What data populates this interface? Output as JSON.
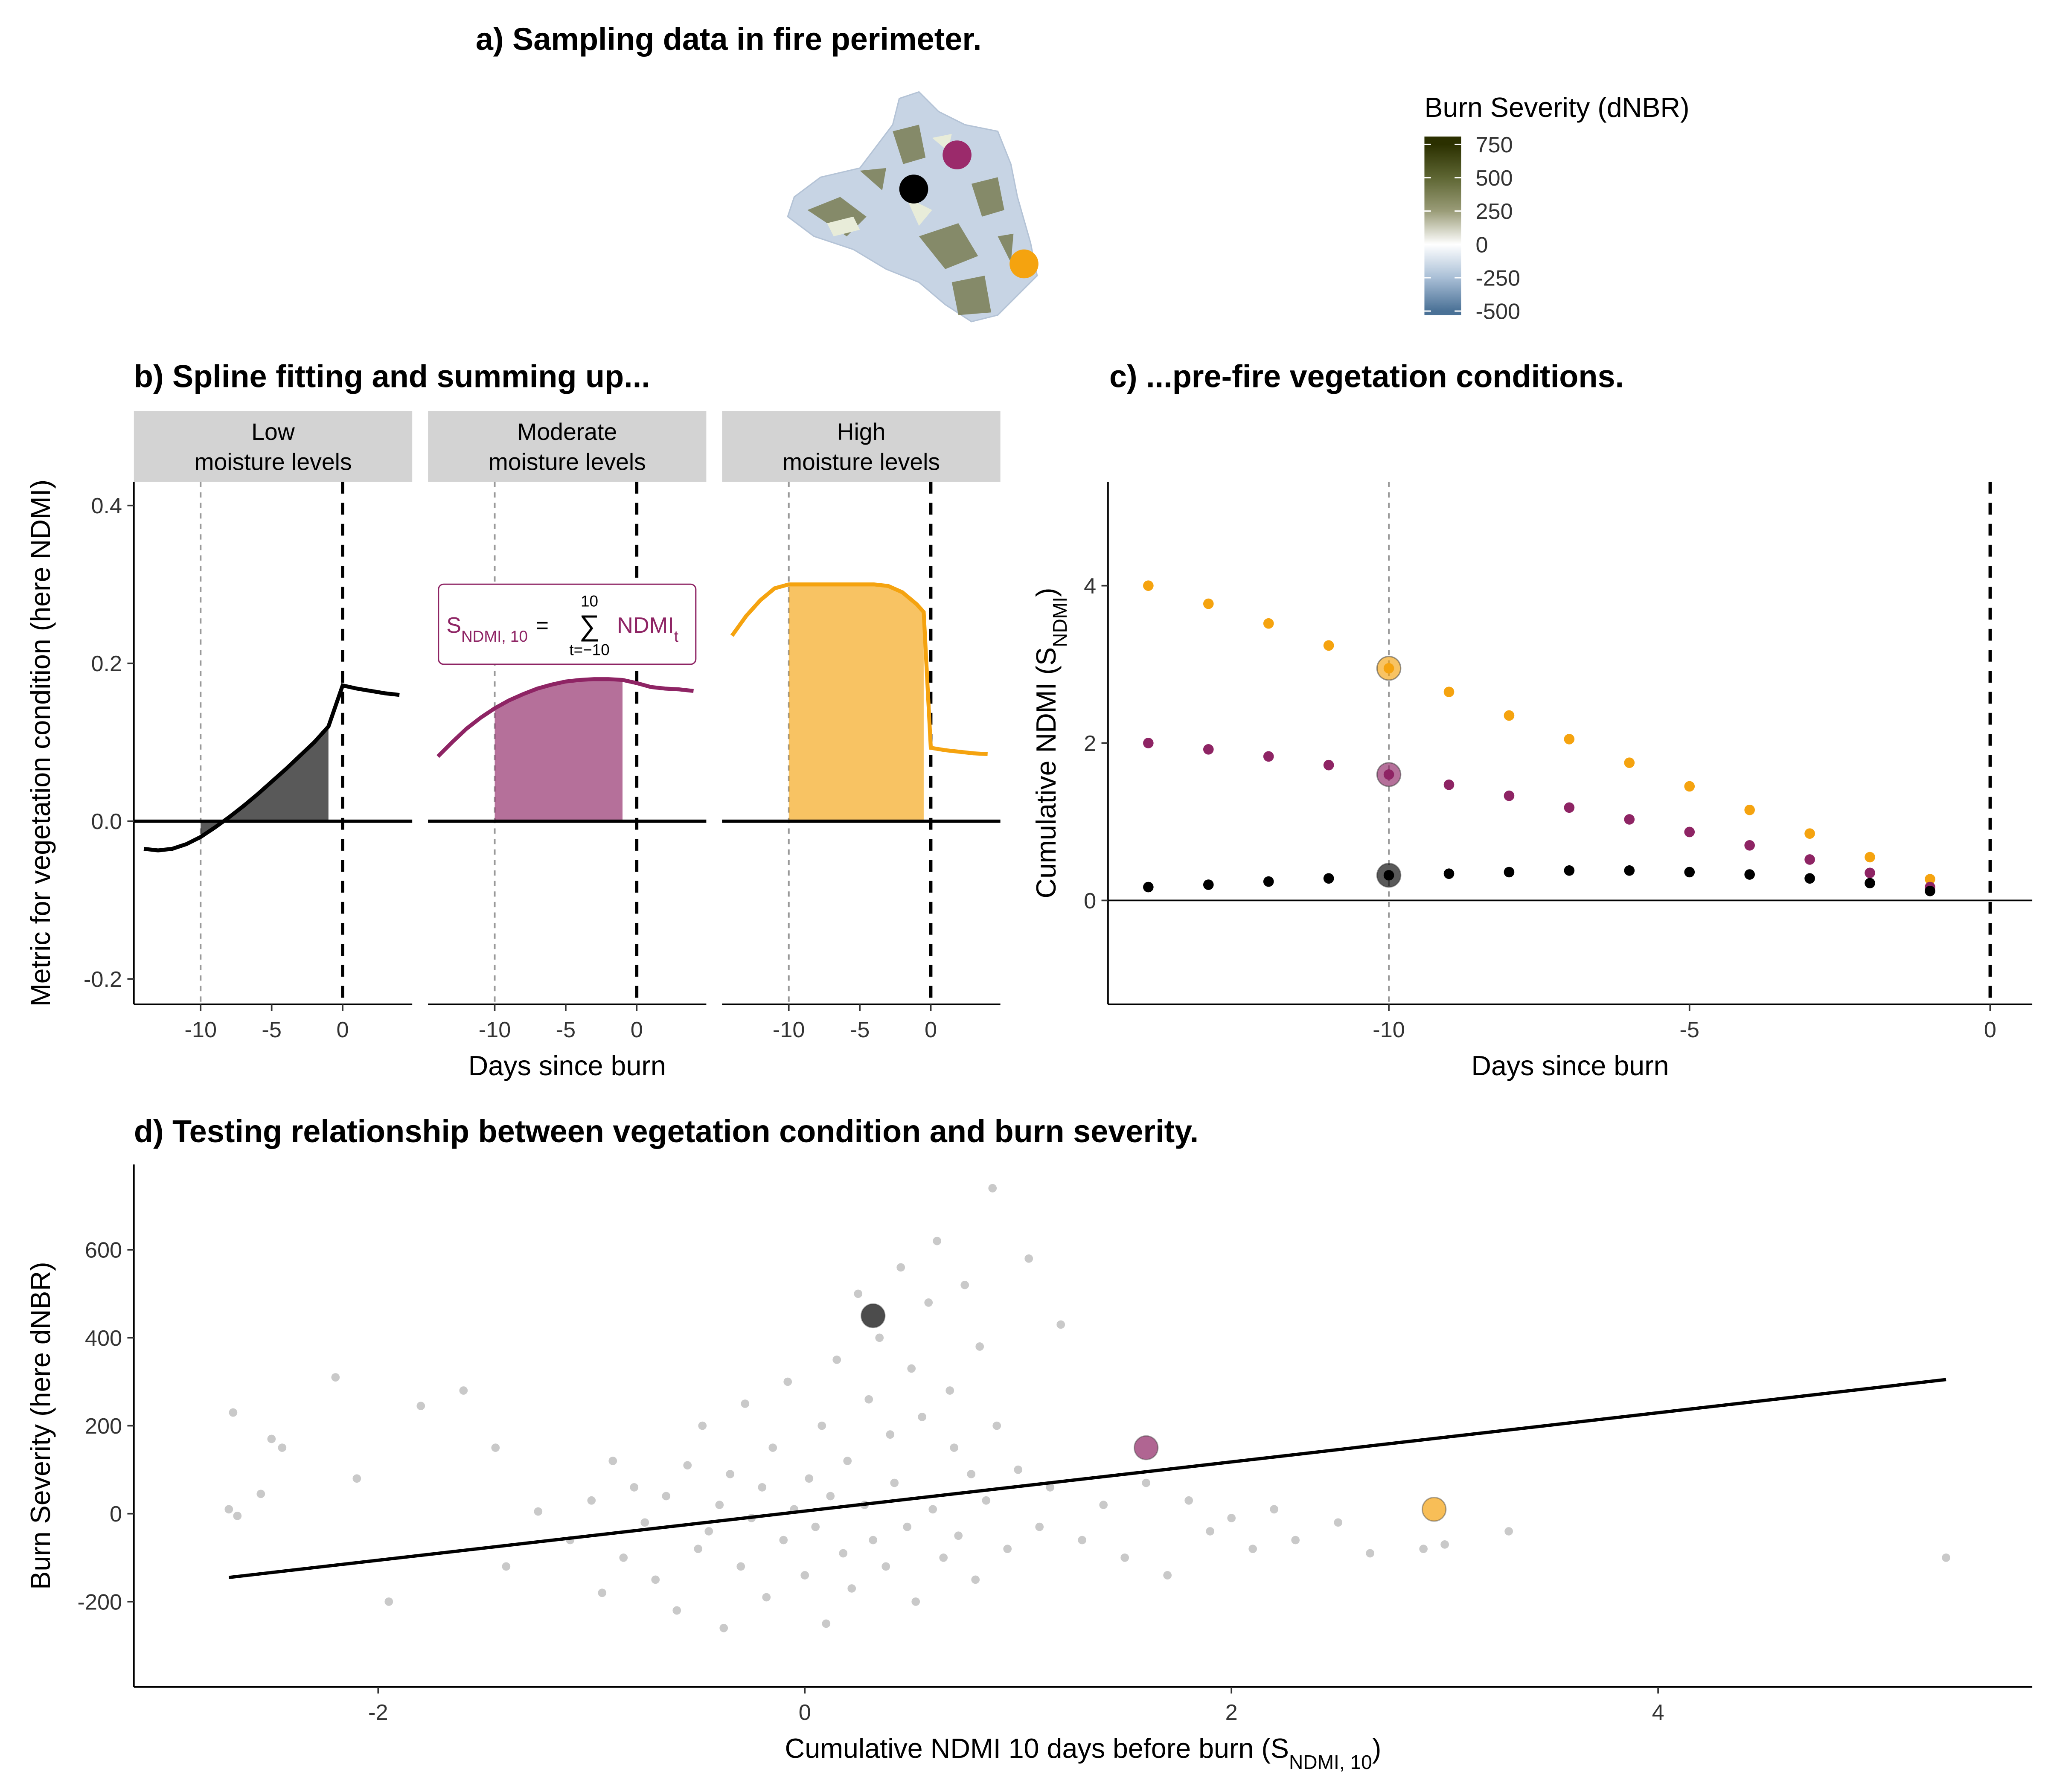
{
  "chart_data": [
    {
      "type": "map",
      "title": "a) Sampling data in fire perimeter.",
      "marker_colors": [
        "#9b2a6b",
        "#000000",
        "#f5a30f"
      ],
      "colorbar": {
        "title": "Burn Severity (dNBR)",
        "lim": [
          -530,
          809
        ],
        "ticks": [
          750,
          500,
          250,
          0,
          -250,
          -500
        ],
        "stops": [
          {
            "value": -500,
            "color": "#4a7196"
          },
          {
            "value": -250,
            "color": "#a9bfd6"
          },
          {
            "value": 0,
            "color": "#ffffff"
          },
          {
            "value": 250,
            "color": "#9a9c78"
          },
          {
            "value": 500,
            "color": "#5e6633"
          },
          {
            "value": 750,
            "color": "#2b3000"
          }
        ]
      }
    },
    {
      "type": "line",
      "title": "b) Spline fitting and summing up...",
      "xlabel": "Days since burn",
      "ylabel": "Metric for vegetation condition (here NDMI)",
      "xlim": [
        -14.7,
        4.9
      ],
      "ylim": [
        -0.232,
        0.43
      ],
      "xticks": [
        -10,
        -5,
        0
      ],
      "yticks": [
        -0.2,
        {
          "value": 0,
          "label": "0.0"
        },
        0.2,
        0.4
      ],
      "hline": 0,
      "vlines": [
        {
          "value": -10,
          "style": "dotted"
        },
        {
          "value": 0,
          "style": "dashed"
        }
      ],
      "facets": [
        {
          "label": [
            "Low",
            "moisture levels"
          ],
          "color": "#000000",
          "x": [
            -14,
            -13,
            -12,
            -11,
            -10,
            -9,
            -8,
            -7,
            -6,
            -5,
            -4,
            -3,
            -2,
            -1,
            0,
            1,
            2,
            3,
            4
          ],
          "values": [
            -0.035,
            -0.037,
            -0.035,
            -0.029,
            -0.02,
            -0.008,
            0.005,
            0.019,
            0.034,
            0.05,
            0.066,
            0.083,
            0.1,
            0.12,
            0.172,
            0.168,
            0.165,
            0.162,
            0.16
          ],
          "fill_x": [
            -10,
            -9,
            -8,
            -7,
            -6,
            -5,
            -4,
            -3,
            -2,
            -1
          ],
          "fill_values": [
            -0.02,
            -0.008,
            0.005,
            0.019,
            0.034,
            0.05,
            0.066,
            0.083,
            0.1,
            0.12
          ]
        },
        {
          "label": [
            "Moderate",
            "moisture levels"
          ],
          "color": "#8e2464",
          "x": [
            -14,
            -13,
            -12,
            -11,
            -10,
            -9,
            -8,
            -7,
            -6,
            -5,
            -4,
            -3,
            -2,
            -1,
            0,
            1,
            2,
            3,
            4
          ],
          "values": [
            0.082,
            0.1,
            0.117,
            0.131,
            0.143,
            0.153,
            0.161,
            0.168,
            0.173,
            0.177,
            0.179,
            0.18,
            0.18,
            0.179,
            0.175,
            0.17,
            0.168,
            0.167,
            0.165
          ],
          "fill_x": [
            -10,
            -9,
            -8,
            -7,
            -6,
            -5,
            -4,
            -3,
            -2,
            -1
          ],
          "fill_values": [
            0.143,
            0.153,
            0.161,
            0.168,
            0.173,
            0.177,
            0.179,
            0.18,
            0.18,
            0.179
          ],
          "annotation": {
            "s": "S",
            "s_sub": "NDMI, 10",
            "eq": "=",
            "sum": "∑",
            "upper": "10",
            "lower": "t=−10",
            "term": "NDMI",
            "term_sub": "t"
          }
        },
        {
          "label": [
            "High",
            "moisture levels"
          ],
          "color": "#f5a30f",
          "x": [
            -14,
            -13,
            -12,
            -11,
            -10,
            -9,
            -8,
            -7,
            -6,
            -5,
            -4,
            -3,
            -2,
            -1,
            -0.5,
            0,
            1,
            2,
            3,
            4
          ],
          "values": [
            0.235,
            0.26,
            0.28,
            0.295,
            0.3,
            0.3,
            0.3,
            0.3,
            0.3,
            0.3,
            0.3,
            0.298,
            0.29,
            0.275,
            0.265,
            0.093,
            0.09,
            0.088,
            0.086,
            0.085
          ],
          "fill_x": [
            -10,
            -9,
            -8,
            -7,
            -6,
            -5,
            -4,
            -3,
            -2,
            -1,
            -0.5
          ],
          "fill_values": [
            0.3,
            0.3,
            0.3,
            0.3,
            0.3,
            0.3,
            0.3,
            0.298,
            0.29,
            0.275,
            0.265
          ]
        }
      ]
    },
    {
      "type": "scatter",
      "title": "c) ...pre-fire vegetation conditions.",
      "xlabel": "Days since burn",
      "ylabel": {
        "text": "Cumulative NDMI (S",
        "sub": "NDMI",
        "end": ")"
      },
      "xlim": [
        -14.67,
        0.7
      ],
      "ylim": [
        -1.32,
        5.32
      ],
      "xticks": [
        -10,
        -5,
        0
      ],
      "yticks": [
        0,
        2,
        4
      ],
      "hline": 0,
      "vlines": [
        {
          "value": -10,
          "style": "dotted"
        },
        {
          "value": 0,
          "style": "dashed"
        }
      ],
      "highlight_x": -10,
      "x": [
        -14,
        -13,
        -12,
        -11,
        -10,
        -9,
        -8,
        -7,
        -6,
        -5,
        -4,
        -3,
        -2,
        -1
      ],
      "series": [
        {
          "color": "#f5a30f",
          "values": [
            4.0,
            3.77,
            3.52,
            3.24,
            2.95,
            2.65,
            2.35,
            2.05,
            1.75,
            1.45,
            1.15,
            0.85,
            0.55,
            0.27
          ]
        },
        {
          "color": "#8e2464",
          "values": [
            2.0,
            1.92,
            1.83,
            1.72,
            1.6,
            1.47,
            1.33,
            1.18,
            1.03,
            0.87,
            0.7,
            0.52,
            0.35,
            0.17
          ]
        },
        {
          "color": "#000000",
          "values": [
            0.17,
            0.2,
            0.24,
            0.28,
            0.32,
            0.34,
            0.36,
            0.38,
            0.38,
            0.36,
            0.33,
            0.28,
            0.22,
            0.12
          ]
        }
      ]
    },
    {
      "type": "scatter",
      "title": "d) Testing relationship between vegetation condition and burn severity.",
      "xlabel": {
        "text": "Cumulative NDMI 10 days before burn (S",
        "sub": "NDMI, 10",
        "end": ")"
      },
      "ylabel": "Burn Severity (here dNBR)",
      "xlim": [
        -3.145,
        5.754
      ],
      "ylim": [
        -394,
        794
      ],
      "xticks": [
        -2,
        0,
        2,
        4
      ],
      "yticks": [
        -200,
        0,
        200,
        400,
        600
      ],
      "color": "#4d4d4d",
      "x": [
        -2.7,
        -2.68,
        -2.66,
        -2.55,
        -2.5,
        -2.45,
        -2.2,
        -2.1,
        -1.95,
        -1.8,
        -1.6,
        -1.45,
        -1.4,
        -1.25,
        -1.1,
        -1.0,
        -0.95,
        -0.9,
        -0.85,
        -0.8,
        -0.75,
        -0.7,
        -0.65,
        -0.6,
        -0.55,
        -0.5,
        -0.48,
        -0.45,
        -0.4,
        -0.38,
        -0.35,
        -0.3,
        -0.28,
        -0.25,
        -0.2,
        -0.18,
        -0.15,
        -0.1,
        -0.08,
        -0.05,
        0.0,
        0.02,
        0.05,
        0.08,
        0.1,
        0.12,
        0.15,
        0.18,
        0.2,
        0.22,
        0.25,
        0.28,
        0.3,
        0.32,
        0.35,
        0.38,
        0.4,
        0.42,
        0.45,
        0.48,
        0.5,
        0.52,
        0.55,
        0.58,
        0.6,
        0.62,
        0.65,
        0.68,
        0.7,
        0.72,
        0.75,
        0.78,
        0.8,
        0.82,
        0.85,
        0.88,
        0.9,
        0.95,
        1.0,
        1.05,
        1.1,
        1.15,
        1.2,
        1.3,
        1.4,
        1.5,
        1.6,
        1.7,
        1.8,
        1.9,
        2.0,
        2.1,
        2.2,
        2.3,
        2.5,
        2.65,
        2.9,
        3.0,
        3.3,
        5.35
      ],
      "values": [
        10,
        230,
        -5,
        45,
        170,
        150,
        310,
        80,
        -200,
        245,
        280,
        150,
        -120,
        5,
        -60,
        30,
        -180,
        120,
        -100,
        60,
        -20,
        -150,
        40,
        -220,
        110,
        -80,
        200,
        -40,
        20,
        -260,
        90,
        -120,
        250,
        -10,
        60,
        -190,
        150,
        -60,
        300,
        10,
        -140,
        80,
        -30,
        200,
        -250,
        40,
        350,
        -90,
        120,
        -170,
        500,
        20,
        260,
        -60,
        400,
        -120,
        180,
        70,
        560,
        -30,
        330,
        -200,
        220,
        480,
        10,
        620,
        -100,
        280,
        150,
        -50,
        520,
        90,
        -150,
        380,
        30,
        740,
        200,
        -80,
        100,
        580,
        -30,
        60,
        430,
        -60,
        20,
        -100,
        70,
        -140,
        30,
        -40,
        -10,
        -80,
        10,
        -60,
        -20,
        -90,
        -80,
        -70,
        -40,
        -100
      ],
      "fit_x": [
        -2.7,
        5.35
      ],
      "fit_values": [
        -145,
        305
      ],
      "highlights": [
        {
          "x": 0.32,
          "value": 450,
          "color": "#000000"
        },
        {
          "x": 1.6,
          "value": 150,
          "color": "#8e2464"
        },
        {
          "x": 2.95,
          "value": 10,
          "color": "#f5a30f"
        }
      ]
    }
  ]
}
